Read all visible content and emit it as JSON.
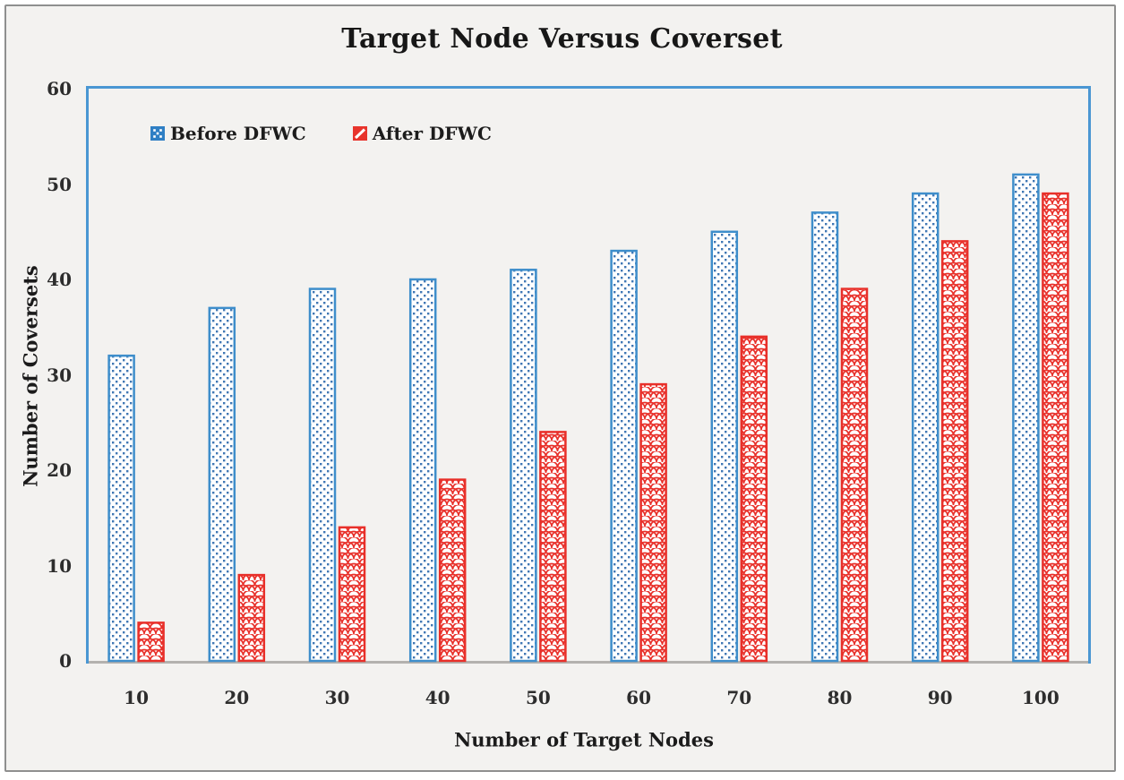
{
  "chart_data": {
    "type": "bar",
    "title": "Target Node Versus Coverset",
    "xlabel": "Number of Target Nodes",
    "ylabel": "Number of Coversets",
    "categories": [
      "10",
      "20",
      "30",
      "40",
      "50",
      "60",
      "70",
      "80",
      "90",
      "100"
    ],
    "series": [
      {
        "name": "Before DFWC",
        "color": "#3e8ecb",
        "pattern": "blue-dots",
        "values": [
          32,
          37,
          39,
          40,
          41,
          43,
          45,
          47,
          49,
          51
        ]
      },
      {
        "name": "After DFWC",
        "color": "#e8302a",
        "pattern": "red-scales",
        "values": [
          4,
          9,
          14,
          19,
          24,
          29,
          34,
          39,
          44,
          49
        ]
      }
    ],
    "ylim": [
      0,
      60
    ],
    "yticks": [
      0,
      10,
      20,
      30,
      40,
      50,
      60
    ],
    "grid": false,
    "legend_position": "top-left-inside",
    "colors": {
      "plot_border": "#4a97d3",
      "axis_line": "#b3b1ae",
      "background": "#f3f2f0",
      "frame_border": "#8f8f8f",
      "text": "#2d2d2d"
    }
  }
}
